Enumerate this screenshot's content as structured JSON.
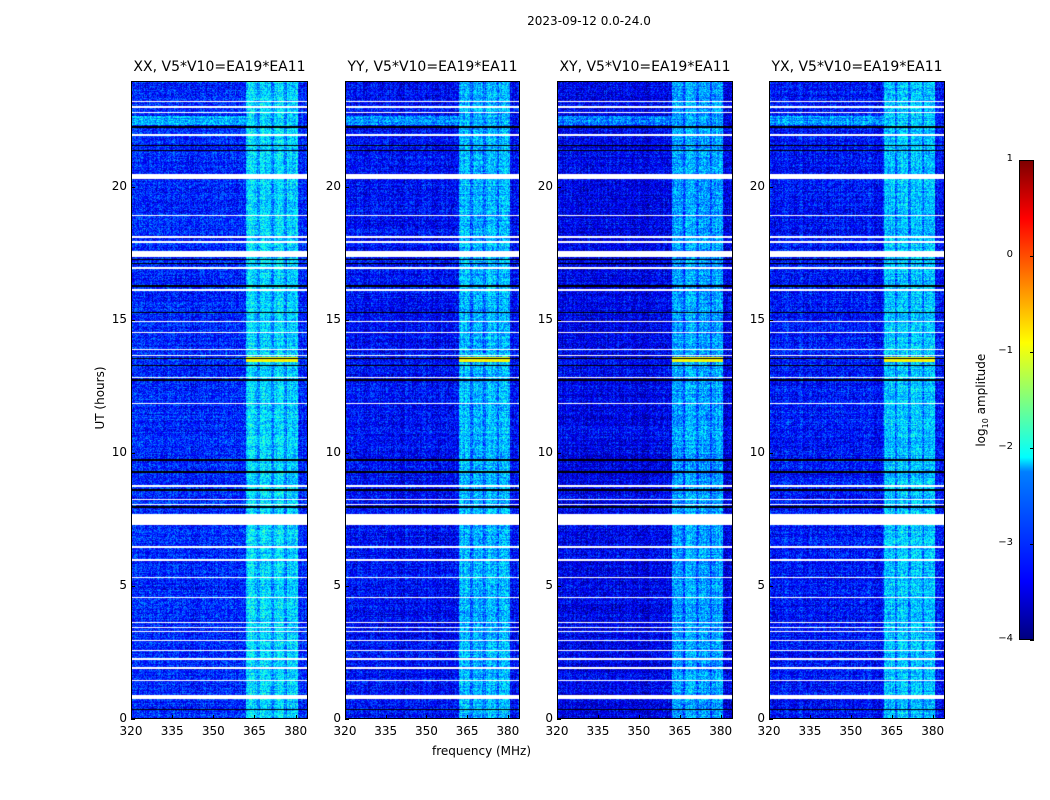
{
  "suptitle": "2023-09-12 0.0-24.0",
  "chart_data": {
    "type": "heatmap",
    "title": "2023-09-12 0.0-24.0",
    "xlabel": "frequency (MHz)",
    "ylabel": "UT (hours)",
    "xlim": [
      320,
      384.5
    ],
    "ylim": [
      0,
      24
    ],
    "xticks": [
      "320",
      "335",
      "350",
      "365",
      "380"
    ],
    "xtick_values": [
      320,
      335,
      350,
      365,
      380
    ],
    "yticks": [
      "0",
      "5",
      "10",
      "15",
      "20"
    ],
    "ytick_values": [
      0,
      5,
      10,
      15,
      20
    ],
    "panels": [
      {
        "title": "XX, V5*V10=EA19*EA11",
        "background_level": -3.2
      },
      {
        "title": "YY, V5*V10=EA19*EA11",
        "background_level": -3.35
      },
      {
        "title": "XY, V5*V10=EA19*EA11",
        "background_level": -3.45
      },
      {
        "title": "YX, V5*V10=EA19*EA11",
        "background_level": -3.3
      }
    ],
    "rfi_band_mhz": [
      362,
      381
    ],
    "rfi_subbands_mhz": [
      [
        362,
        366
      ],
      [
        367,
        371
      ],
      [
        372,
        376
      ],
      [
        377,
        381
      ]
    ],
    "rfi_level": -2.3,
    "burst": {
      "hours": [
        13.45,
        13.65
      ],
      "level": -0.9
    },
    "flagged_hours_white": [
      [
        23.25,
        23.3
      ],
      [
        23.05,
        23.1
      ],
      [
        22.85,
        22.9
      ],
      [
        22.0,
        22.05
      ],
      [
        20.35,
        20.55
      ],
      [
        18.95,
        19.0
      ],
      [
        18.15,
        18.2
      ],
      [
        17.95,
        18.0
      ],
      [
        17.4,
        17.65
      ],
      [
        16.95,
        17.05
      ],
      [
        16.15,
        16.2
      ],
      [
        14.95,
        15.0
      ],
      [
        14.55,
        14.6
      ],
      [
        13.9,
        13.95
      ],
      [
        13.68,
        13.72
      ],
      [
        12.85,
        12.9
      ],
      [
        11.85,
        11.9
      ],
      [
        8.75,
        8.8
      ],
      [
        8.25,
        8.3
      ],
      [
        8.05,
        8.1
      ],
      [
        7.3,
        7.7
      ],
      [
        6.45,
        6.5
      ],
      [
        5.95,
        6.0
      ],
      [
        5.3,
        5.35
      ],
      [
        4.55,
        4.6
      ],
      [
        3.6,
        3.65
      ],
      [
        3.42,
        3.47
      ],
      [
        3.25,
        3.3
      ],
      [
        2.92,
        2.97
      ],
      [
        2.55,
        2.6
      ],
      [
        2.22,
        2.27
      ],
      [
        1.88,
        1.93
      ],
      [
        1.42,
        1.47
      ],
      [
        0.75,
        0.9
      ]
    ],
    "flagged_hours_black": [
      [
        22.3,
        22.35
      ],
      [
        21.6,
        21.65
      ],
      [
        21.4,
        21.45
      ],
      [
        17.3,
        17.35
      ],
      [
        17.15,
        17.2
      ],
      [
        16.3,
        16.35
      ],
      [
        15.3,
        15.35
      ],
      [
        13.55,
        13.6
      ],
      [
        13.3,
        13.35
      ],
      [
        12.75,
        12.8
      ],
      [
        9.72,
        9.78
      ],
      [
        9.28,
        9.33
      ],
      [
        8.6,
        8.65
      ],
      [
        7.95,
        8.0
      ],
      [
        0.32,
        0.37
      ]
    ],
    "colorbar": {
      "label_prefix": "log",
      "label_sub": "10",
      "label_suffix": " amplitude",
      "range": [
        -4,
        1
      ],
      "ticks": [
        "1",
        "0",
        "−1",
        "−2",
        "−3",
        "−4"
      ],
      "tick_values": [
        1,
        0,
        -1,
        -2,
        -3,
        -4
      ],
      "colormap": "jet"
    }
  }
}
